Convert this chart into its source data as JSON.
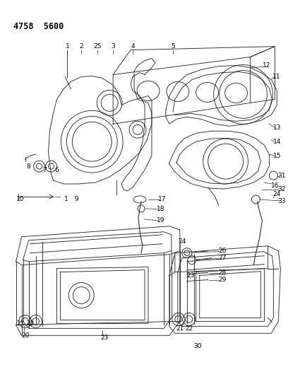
{
  "title": "4758  5600",
  "bg_color": "#ffffff",
  "line_color": "#2a2a2a",
  "label_color": "#000000",
  "fig_width": 4.08,
  "fig_height": 5.33,
  "dpi": 100,
  "font_size": 6.5,
  "title_font_size": 8.5,
  "lw": 0.65
}
